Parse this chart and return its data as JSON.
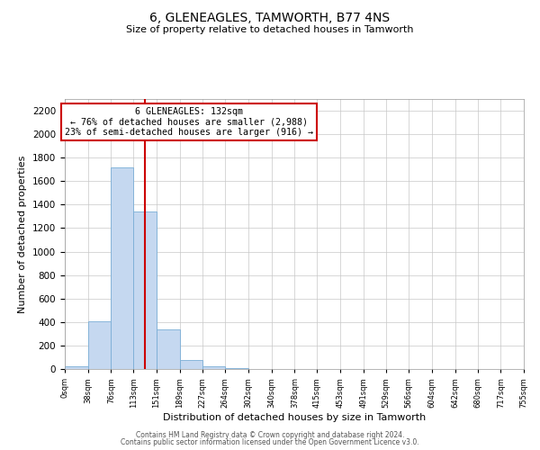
{
  "title": "6, GLENEAGLES, TAMWORTH, B77 4NS",
  "subtitle": "Size of property relative to detached houses in Tamworth",
  "xlabel": "Distribution of detached houses by size in Tamworth",
  "ylabel": "Number of detached properties",
  "bar_color": "#c5d8f0",
  "bar_edge_color": "#7aaed6",
  "background_color": "#ffffff",
  "grid_color": "#c8c8c8",
  "annotation_box_edge": "#cc0000",
  "red_line_x": 132,
  "annotation_title": "6 GLENEAGLES: 132sqm",
  "annotation_line1": "← 76% of detached houses are smaller (2,988)",
  "annotation_line2": "23% of semi-detached houses are larger (916) →",
  "bin_edges": [
    0,
    38,
    76,
    113,
    151,
    189,
    227,
    264,
    302,
    340,
    378,
    415,
    453,
    491,
    529,
    566,
    604,
    642,
    680,
    717,
    755
  ],
  "bin_counts": [
    20,
    410,
    1720,
    1340,
    340,
    80,
    25,
    10,
    0,
    0,
    0,
    0,
    0,
    0,
    0,
    0,
    0,
    0,
    0,
    0
  ],
  "ylim": [
    0,
    2300
  ],
  "yticks": [
    0,
    200,
    400,
    600,
    800,
    1000,
    1200,
    1400,
    1600,
    1800,
    2000,
    2200
  ],
  "footer1": "Contains HM Land Registry data © Crown copyright and database right 2024.",
  "footer2": "Contains public sector information licensed under the Open Government Licence v3.0."
}
